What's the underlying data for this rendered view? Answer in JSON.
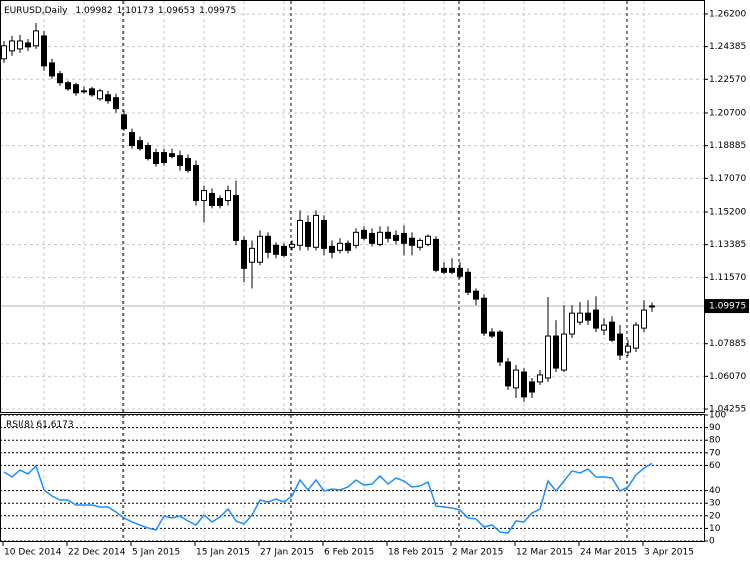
{
  "chart_data": [
    {
      "type": "candlestick",
      "title": "EURUSD,Daily",
      "categories": [
        "10 Dec 2014",
        null,
        null,
        null,
        null,
        null,
        null,
        null,
        "22 Dec 2014",
        null,
        null,
        null,
        null,
        null,
        null,
        null,
        "5 Jan 2015",
        null,
        null,
        null,
        null,
        null,
        null,
        null,
        "15 Jan 2015",
        null,
        null,
        null,
        null,
        null,
        null,
        null,
        "27 Jan 2015",
        null,
        null,
        null,
        null,
        null,
        null,
        null,
        "6 Feb 2015",
        null,
        null,
        null,
        null,
        null,
        null,
        null,
        "18 Feb 2015",
        null,
        null,
        null,
        null,
        null,
        null,
        null,
        "2 Mar 2015",
        null,
        null,
        null,
        null,
        null,
        null,
        null,
        "12 Mar 2015",
        null,
        null,
        null,
        null,
        null,
        null,
        null,
        "24 Mar 2015",
        null,
        null,
        null,
        null,
        null,
        null,
        null,
        "3 Apr 2015",
        null
      ],
      "open": [
        1.2371,
        1.2415,
        1.2426,
        1.2459,
        1.2443,
        1.2498,
        1.2348,
        1.2288,
        1.2238,
        1.2227,
        1.2193,
        1.2204,
        1.2149,
        1.2171,
        1.2155,
        1.206,
        1.1961,
        1.1916,
        1.1889,
        1.185,
        1.185,
        1.1844,
        1.1833,
        1.1817,
        1.1778,
        1.1584,
        1.1623,
        1.1595,
        1.1584,
        1.1612,
        1.1362,
        1.1241,
        1.1241,
        1.1385,
        1.1335,
        1.1329,
        1.1324,
        1.1335,
        1.1462,
        1.1324,
        1.1473,
        1.1329,
        1.1307,
        1.1346,
        1.1335,
        1.1418,
        1.1401,
        1.134,
        1.1407,
        1.139,
        1.1401,
        1.1374,
        1.1324,
        1.134,
        1.1368,
        1.1207,
        1.1207,
        1.1207,
        1.1185,
        1.108,
        1.1041,
        1.0853,
        1.0853,
        1.0687,
        1.0543,
        1.0631,
        1.0576,
        1.0576,
        1.0598,
        1.0831,
        1.0642,
        1.0842,
        1.0908,
        1.0958,
        1.0975,
        1.0864,
        1.0908,
        1.0842,
        1.0742,
        1.0764,
        1.0875,
        1.09982
      ],
      "high": [
        1.247,
        1.2498,
        1.2504,
        1.2481,
        1.257,
        1.2526,
        1.2371,
        1.2304,
        1.2249,
        1.2238,
        1.2216,
        1.2216,
        1.2204,
        1.2193,
        1.2177,
        1.2083,
        1.1983,
        1.1939,
        1.1905,
        1.1872,
        1.1872,
        1.1872,
        1.1861,
        1.1839,
        1.1806,
        1.1667,
        1.1651,
        1.1612,
        1.1667,
        1.1695,
        1.1385,
        1.1362,
        1.1418,
        1.1407,
        1.1351,
        1.1346,
        1.1362,
        1.1529,
        1.1501,
        1.1529,
        1.1501,
        1.1362,
        1.1374,
        1.1362,
        1.1429,
        1.144,
        1.1429,
        1.144,
        1.144,
        1.1418,
        1.1446,
        1.1407,
        1.1374,
        1.1396,
        1.1385,
        1.1241,
        1.1263,
        1.1241,
        1.1207,
        1.1096,
        1.1063,
        1.0875,
        1.0864,
        1.0709,
        1.067,
        1.0653,
        1.0598,
        1.0642,
        1.1047,
        1.0919,
        1.1002,
        1.1002,
        1.1019,
        1.103,
        1.1052,
        1.093,
        1.0941,
        1.0892,
        1.0808,
        1.0908,
        1.103,
        1.10173
      ],
      "low": [
        1.2348,
        1.2387,
        1.2404,
        1.2415,
        1.2426,
        1.2304,
        1.226,
        1.2221,
        1.2193,
        1.2166,
        1.2177,
        1.216,
        1.2138,
        1.2121,
        1.2072,
        1.1972,
        1.1872,
        1.1861,
        1.1806,
        1.1772,
        1.1778,
        1.1817,
        1.175,
        1.1739,
        1.1556,
        1.1462,
        1.154,
        1.154,
        1.1556,
        1.1335,
        1.113,
        1.1096,
        1.1224,
        1.1263,
        1.1263,
        1.1268,
        1.1307,
        1.1307,
        1.1307,
        1.1307,
        1.1279,
        1.1263,
        1.129,
        1.129,
        1.1318,
        1.1362,
        1.1329,
        1.1329,
        1.1351,
        1.134,
        1.1279,
        1.1279,
        1.1307,
        1.1329,
        1.1185,
        1.1174,
        1.1174,
        1.1152,
        1.1058,
        1.1002,
        1.0831,
        1.082,
        1.0664,
        1.0531,
        1.0487,
        1.0465,
        1.0487,
        1.0559,
        1.0576,
        1.0631,
        1.0631,
        1.082,
        1.0892,
        1.0892,
        1.0853,
        1.0836,
        1.0797,
        1.0698,
        1.072,
        1.0742,
        1.0853,
        1.09653
      ],
      "close": [
        1.2443,
        1.247,
        1.247,
        1.2437,
        1.2526,
        1.2332,
        1.2276,
        1.2238,
        1.2204,
        1.2182,
        1.2188,
        1.2171,
        1.2193,
        1.2138,
        1.2094,
        1.1983,
        1.1889,
        1.1872,
        1.1817,
        1.1789,
        1.1795,
        1.1828,
        1.1778,
        1.175,
        1.1584,
        1.1639,
        1.1556,
        1.1556,
        1.1639,
        1.1362,
        1.1207,
        1.1318,
        1.1385,
        1.1296,
        1.1285,
        1.1279,
        1.134,
        1.1473,
        1.1329,
        1.1501,
        1.1318,
        1.1296,
        1.1346,
        1.1307,
        1.1407,
        1.1374,
        1.1346,
        1.1407,
        1.1374,
        1.1362,
        1.1346,
        1.1335,
        1.1362,
        1.1385,
        1.1196,
        1.1185,
        1.1185,
        1.1163,
        1.1074,
        1.1036,
        1.0847,
        1.0831,
        1.0687,
        1.0554,
        1.0642,
        1.0493,
        1.052,
        1.0615,
        1.0831,
        1.0653,
        1.0842,
        1.0958,
        1.0958,
        1.0919,
        1.0875,
        1.0892,
        1.0808,
        1.0725,
        1.0775,
        1.0892,
        1.0975,
        1.09975
      ],
      "up_color": "#ffffff",
      "down_color": "#000000",
      "ylim": [
        1.0409,
        1.2692
      ],
      "yticks": [
        {
          "value": 1.262,
          "label": "1.26200"
        },
        {
          "value": 1.24385,
          "label": "1.24385"
        },
        {
          "value": 1.2257,
          "label": "1.22570"
        },
        {
          "value": 1.207,
          "label": "1.20700"
        },
        {
          "value": 1.18885,
          "label": "1.18885"
        },
        {
          "value": 1.1707,
          "label": "1.17070"
        },
        {
          "value": 1.152,
          "label": "1.15200"
        },
        {
          "value": 1.13385,
          "label": "1.13385"
        },
        {
          "value": 1.1157,
          "label": "1.11570"
        },
        {
          "value": 1.07885,
          "label": "1.07885"
        },
        {
          "value": 1.0607,
          "label": "1.06070"
        },
        {
          "value": 1.04255,
          "label": "1.04255"
        }
      ],
      "grid": true
    },
    {
      "type": "line",
      "title": "RSI(8)",
      "color": "#1e90ff",
      "values": [
        54.8,
        50.8,
        56.3,
        53.2,
        59.5,
        40.5,
        35.7,
        32.5,
        32.5,
        28.6,
        28.6,
        28.6,
        27.0,
        27.0,
        23.0,
        18.3,
        15.1,
        12.7,
        10.3,
        8.7,
        19.8,
        18.3,
        19.8,
        15.9,
        12.7,
        20.6,
        15.1,
        19.0,
        25.4,
        15.9,
        13.5,
        20.6,
        32.5,
        31.0,
        33.3,
        31.0,
        35.7,
        48.4,
        40.5,
        48.4,
        39.7,
        41.3,
        40.5,
        42.9,
        48.4,
        44.4,
        45.2,
        51.6,
        45.2,
        50.0,
        47.6,
        42.9,
        43.7,
        46.8,
        27.8,
        27.0,
        26.2,
        24.6,
        18.3,
        17.5,
        11.1,
        12.7,
        7.1,
        6.3,
        15.9,
        15.1,
        22.2,
        25.4,
        47.6,
        39.7,
        47.6,
        55.6,
        54.0,
        57.1,
        50.8,
        50.8,
        50.0,
        39.7,
        42.9,
        52.4,
        57.9,
        61.6173
      ],
      "ylim": [
        0,
        100
      ],
      "yticks": [
        100,
        90,
        80,
        70,
        60,
        40,
        30,
        20,
        10,
        0
      ],
      "grid": true
    }
  ]
}
